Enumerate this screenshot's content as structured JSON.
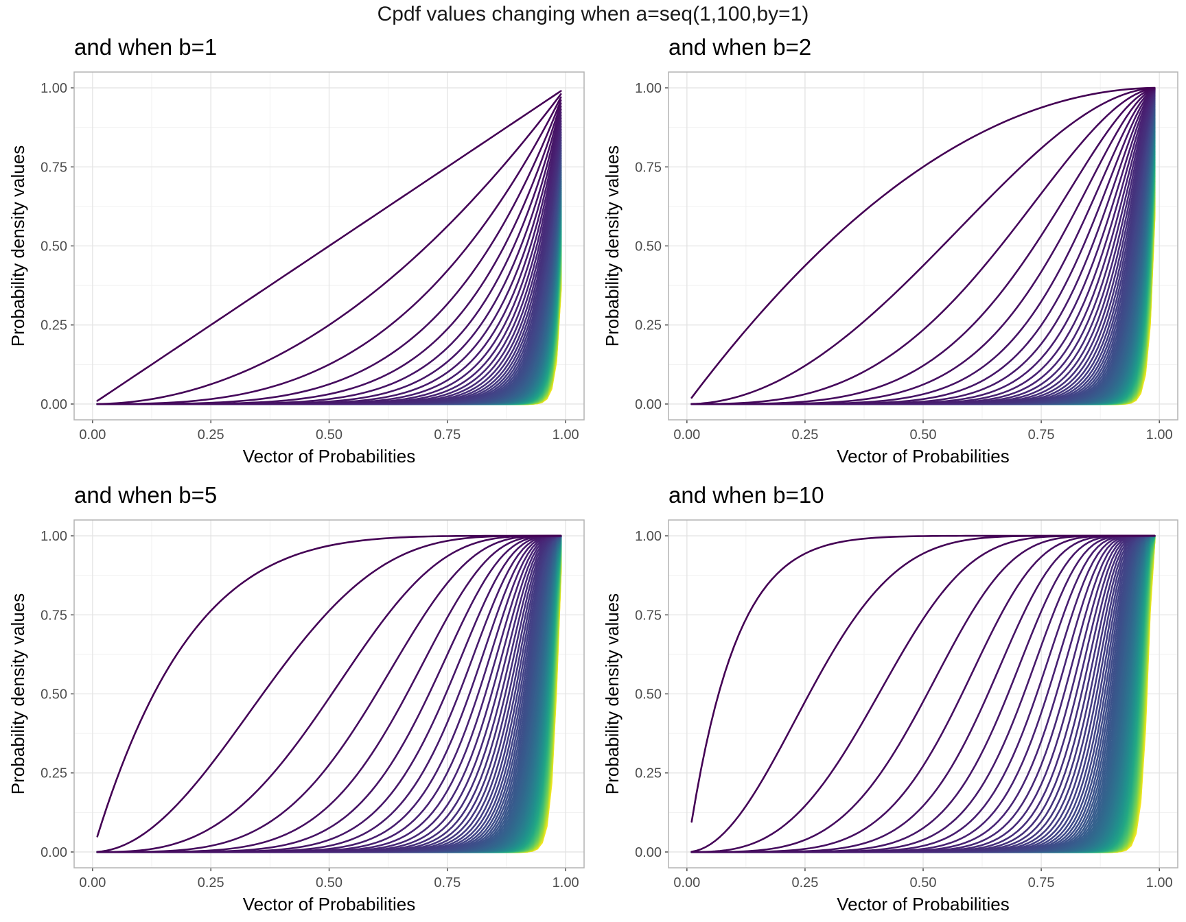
{
  "title": "Cpdf values changing when a=seq(1,100,by=1)",
  "colors": {
    "palette_start": "#440154",
    "palette_end": "#FDE725",
    "panel_border": "#b3b3b3",
    "grid_major": "#e3e3e3",
    "grid_minor": "#f1f1f1"
  },
  "chart_data": [
    {
      "type": "line",
      "title": "and when b=1",
      "xlabel": "Vector of Probabilities",
      "ylabel": "Probability density values",
      "b": 1,
      "a": {
        "from": 1,
        "to": 100,
        "by": 1
      },
      "x": {
        "from": 0.01,
        "to": 0.99,
        "by": 0.01
      },
      "formula": "1 - (1 - x^a)^b",
      "xlim": [
        0,
        1
      ],
      "ylim": [
        0,
        1
      ],
      "xticks": [
        "0.00",
        "0.25",
        "0.50",
        "0.75",
        "1.00"
      ],
      "yticks": [
        "0.00",
        "0.25",
        "0.50",
        "0.75",
        "1.00"
      ],
      "grid": true
    },
    {
      "type": "line",
      "title": "and when b=2",
      "xlabel": "Vector of Probabilities",
      "ylabel": "Probability density values",
      "b": 2,
      "a": {
        "from": 1,
        "to": 100,
        "by": 1
      },
      "x": {
        "from": 0.01,
        "to": 0.99,
        "by": 0.01
      },
      "formula": "1 - (1 - x^a)^b",
      "xlim": [
        0,
        1
      ],
      "ylim": [
        0,
        1
      ],
      "xticks": [
        "0.00",
        "0.25",
        "0.50",
        "0.75",
        "1.00"
      ],
      "yticks": [
        "0.00",
        "0.25",
        "0.50",
        "0.75",
        "1.00"
      ],
      "grid": true
    },
    {
      "type": "line",
      "title": "and when b=5",
      "xlabel": "Vector of Probabilities",
      "ylabel": "Probability density values",
      "b": 5,
      "a": {
        "from": 1,
        "to": 100,
        "by": 1
      },
      "x": {
        "from": 0.01,
        "to": 0.99,
        "by": 0.01
      },
      "formula": "1 - (1 - x^a)^b",
      "xlim": [
        0,
        1
      ],
      "ylim": [
        0,
        1
      ],
      "xticks": [
        "0.00",
        "0.25",
        "0.50",
        "0.75",
        "1.00"
      ],
      "yticks": [
        "0.00",
        "0.25",
        "0.50",
        "0.75",
        "1.00"
      ],
      "grid": true
    },
    {
      "type": "line",
      "title": "and when b=10",
      "xlabel": "Vector of Probabilities",
      "ylabel": "Probability density values",
      "b": 10,
      "a": {
        "from": 1,
        "to": 100,
        "by": 1
      },
      "x": {
        "from": 0.01,
        "to": 0.99,
        "by": 0.01
      },
      "formula": "1 - (1 - x^a)^b",
      "xlim": [
        0,
        1
      ],
      "ylim": [
        0,
        1
      ],
      "xticks": [
        "0.00",
        "0.25",
        "0.50",
        "0.75",
        "1.00"
      ],
      "yticks": [
        "0.00",
        "0.25",
        "0.50",
        "0.75",
        "1.00"
      ],
      "grid": true
    }
  ]
}
